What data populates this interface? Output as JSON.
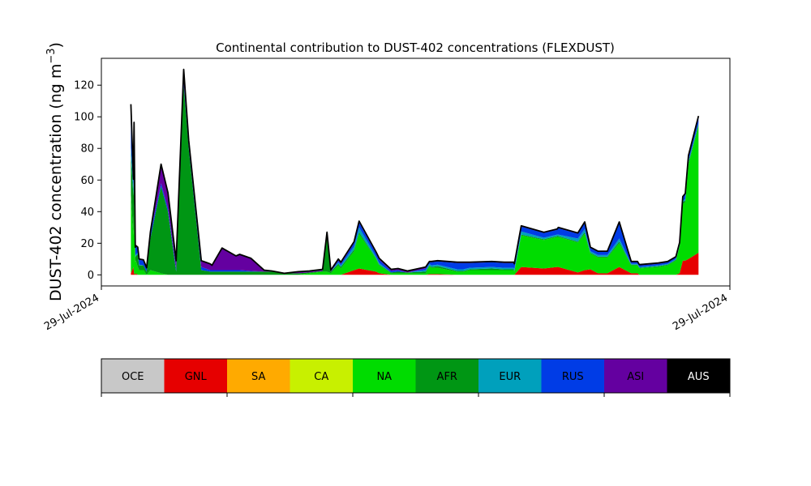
{
  "chart_data": [
    {
      "type": "area",
      "stacked": true,
      "title": "Continental contribution to DUST-402 concentrations (FLEXDUST)",
      "ylabel": "DUST-402 concentration (ng m",
      "ylabel_superscript": "−3",
      "ylabel_close": ")",
      "xlim": [
        0,
        100
      ],
      "ylim": [
        -7,
        137
      ],
      "x_ticks": [
        {
          "value": 0,
          "label": "29-Jul-2024"
        },
        {
          "value": 100,
          "label": "29-Jul-2024"
        }
      ],
      "y_ticks": [
        0,
        20,
        40,
        60,
        80,
        100,
        120
      ],
      "grid": false,
      "x": [
        4.7,
        5.1,
        5.2,
        5.4,
        5.5,
        5.8,
        6.0,
        6.7,
        7.2,
        7.8,
        9.5,
        10.6,
        11.9,
        13.1,
        13.9,
        15.9,
        17.3,
        17.6,
        19.2,
        21.4,
        22.0,
        23.8,
        25.9,
        27.1,
        29.1,
        31.3,
        33.1,
        35.2,
        35.9,
        36.5,
        37.7,
        38.1,
        40.2,
        41.0,
        43.7,
        44.2,
        46.1,
        47.2,
        48.7,
        51.6,
        52.2,
        52.5,
        53.5,
        56.6,
        57.6,
        58.6,
        62.1,
        64.1,
        65.6,
        65.7,
        66.8,
        70.4,
        72.5,
        72.7,
        75.8,
        76.9,
        77.8,
        79.0,
        79.3,
        80.5,
        82.4,
        84.3,
        84.9,
        85.3,
        85.6,
        88.6,
        90.1,
        91.4,
        92.0,
        92.5,
        92.9,
        93.4,
        95.0
      ],
      "series": [
        {
          "name": "OCE",
          "color": "#c8c8c8",
          "values": [
            0,
            0,
            0,
            0,
            0,
            0,
            0,
            0,
            0,
            0,
            0,
            0,
            0,
            0,
            0,
            0,
            0,
            0,
            0,
            0,
            0,
            0,
            0,
            0,
            0,
            0,
            0,
            0,
            0,
            0,
            0,
            0,
            0,
            0,
            0,
            0,
            0,
            0,
            0,
            0,
            0,
            0,
            0,
            0,
            0,
            0,
            0,
            0,
            0,
            0,
            0,
            0,
            0,
            0,
            0,
            0,
            0,
            0,
            0,
            0,
            0,
            0,
            0,
            0,
            0,
            0,
            0,
            0,
            0,
            0,
            0,
            0,
            0
          ]
        },
        {
          "name": "GNL",
          "color": "#e60000",
          "values": [
            1,
            5,
            1,
            0,
            1,
            0,
            0,
            0,
            0,
            0,
            0,
            0,
            0,
            0,
            0,
            0,
            0,
            0,
            0,
            0,
            0,
            0,
            0,
            0,
            0,
            0,
            0,
            0,
            0,
            0,
            0,
            0,
            3,
            4,
            2,
            1,
            0,
            0,
            0,
            0,
            0.5,
            0.5,
            0.5,
            0,
            0,
            0,
            0,
            0,
            0,
            0,
            5,
            4,
            5,
            5,
            1.5,
            3,
            3.5,
            1,
            1,
            1,
            5,
            1,
            1,
            1,
            0,
            0,
            0,
            0,
            1,
            9,
            9,
            10,
            14
          ]
        },
        {
          "name": "SA",
          "color": "#ffaa00",
          "values": [
            0,
            0,
            0,
            0,
            0,
            0,
            0,
            0,
            0,
            0,
            0,
            0,
            0,
            0,
            0,
            0,
            0,
            0,
            0,
            0,
            0,
            0,
            0,
            0,
            0,
            0,
            0,
            0,
            0,
            0,
            0,
            0,
            0,
            0,
            0,
            0,
            0,
            0,
            0,
            0,
            0,
            0,
            0,
            0,
            0,
            0,
            0,
            0,
            0,
            0,
            0,
            0,
            0,
            0,
            0,
            0,
            0,
            0,
            0,
            0,
            0,
            0,
            0,
            0,
            0,
            0,
            0,
            0,
            0,
            0,
            0,
            0,
            0
          ]
        },
        {
          "name": "CA",
          "color": "#c8f000",
          "values": [
            0,
            0,
            0,
            0,
            0,
            0,
            0,
            0,
            0,
            0,
            0,
            0,
            0,
            0,
            0,
            0,
            0,
            0,
            0,
            0,
            0,
            0,
            0,
            0,
            0,
            0,
            0,
            0,
            0,
            0,
            0,
            0,
            0,
            0,
            0,
            0,
            0,
            0,
            0,
            0,
            0,
            0,
            0,
            0,
            0,
            0,
            0,
            0,
            0,
            0,
            0,
            0,
            0,
            0,
            0,
            0,
            0,
            0,
            0,
            0,
            0,
            0,
            0,
            0,
            0,
            0,
            0,
            0,
            0,
            0,
            0,
            0,
            0
          ]
        },
        {
          "name": "NA",
          "color": "#00dc00",
          "values": [
            50,
            20,
            45,
            8,
            8,
            5,
            3,
            3,
            0,
            3,
            1,
            0,
            0,
            0,
            0,
            0,
            0,
            0,
            0,
            0,
            0,
            0,
            0,
            0,
            0,
            0,
            1,
            2,
            2,
            1,
            6,
            4,
            12,
            22,
            8,
            5,
            1,
            1,
            1,
            1,
            5,
            4,
            4,
            2,
            2,
            3,
            3,
            3,
            3,
            2,
            20,
            18,
            19,
            19,
            19,
            23,
            10,
            10,
            10,
            10,
            15,
            5,
            5,
            5,
            4,
            5,
            6,
            9,
            17,
            36,
            37,
            60,
            80
          ]
        },
        {
          "name": "AFR",
          "color": "#009614",
          "values": [
            25,
            25,
            30,
            3,
            3,
            8,
            3,
            3,
            2,
            20,
            55,
            40,
            2,
            120,
            80,
            3,
            2,
            2,
            2,
            2,
            2,
            2,
            2,
            2,
            1,
            1,
            0.5,
            0.5,
            24,
            1,
            1,
            1,
            1,
            1,
            0.5,
            0.5,
            0.5,
            1,
            0.5,
            1,
            0.5,
            0.5,
            1,
            0.5,
            0.5,
            0.5,
            1,
            0.5,
            0.5,
            0.5,
            0.5,
            0.5,
            0.5,
            0.5,
            0.5,
            1,
            0.5,
            0.5,
            0.5,
            0.5,
            1,
            0.5,
            0.5,
            0.5,
            0.5,
            0.5,
            0.5,
            0.5,
            0.5,
            1,
            1,
            1,
            1
          ]
        },
        {
          "name": "EUR",
          "color": "#00a0bc",
          "values": [
            5,
            5,
            5,
            1,
            1,
            1,
            0.5,
            0,
            0,
            0,
            0,
            0,
            0,
            0,
            0,
            0,
            0,
            0,
            0,
            0,
            0,
            0,
            0,
            0,
            0,
            0,
            0,
            0,
            0,
            0,
            1,
            1,
            2,
            3,
            1,
            1,
            0,
            0,
            0,
            1,
            1,
            1,
            1,
            1,
            1,
            1,
            1,
            1,
            1,
            1,
            2,
            1,
            1,
            1,
            2,
            2,
            1,
            1,
            1,
            1,
            2,
            0.5,
            0.5,
            0.5,
            0.5,
            0.5,
            0.5,
            0.5,
            0.5,
            1,
            1,
            1,
            1
          ]
        },
        {
          "name": "RUS",
          "color": "#003ce6",
          "values": [
            26,
            5,
            15,
            5,
            5,
            3,
            3,
            3,
            2,
            3,
            2,
            2,
            2,
            2,
            2,
            2,
            1,
            1,
            1,
            1,
            1,
            0.5,
            0,
            0,
            0,
            0,
            0,
            0,
            0,
            0,
            1,
            1,
            2,
            3,
            2,
            2,
            1,
            1,
            0,
            1,
            1,
            2,
            2,
            4,
            4,
            3,
            3,
            3,
            3,
            3,
            3,
            3,
            3,
            4,
            3,
            4,
            2,
            2,
            2,
            2,
            10,
            1,
            1,
            1,
            1,
            1,
            1,
            1,
            1,
            2,
            3,
            3,
            4
          ]
        },
        {
          "name": "ASI",
          "color": "#6400a0",
          "values": [
            1,
            0.5,
            0.5,
            0.5,
            0.5,
            0.5,
            0.5,
            0.5,
            0.5,
            1,
            12,
            10,
            5,
            8,
            3,
            4,
            4,
            3,
            14,
            9,
            10,
            8,
            1,
            0.5,
            0,
            1,
            1,
            1,
            1,
            1,
            1,
            1,
            1,
            1,
            1,
            1,
            1,
            1,
            1,
            1,
            0.5,
            0.5,
            0.5,
            0.5,
            0.5,
            0.5,
            0.5,
            0.5,
            0.5,
            0.5,
            0.5,
            0.5,
            0.5,
            0.5,
            0.5,
            0.5,
            0.5,
            0.5,
            0.5,
            0.5,
            0.5,
            0.5,
            0.5,
            0.5,
            0.5,
            0.5,
            0.5,
            0.5,
            0.5,
            0.5,
            0.5,
            0.5,
            0.5
          ]
        },
        {
          "name": "AUS",
          "color": "#000000",
          "values": [
            0,
            0,
            0,
            0,
            0,
            0,
            0,
            0,
            0,
            0,
            0,
            0,
            0,
            0,
            0,
            0,
            0,
            0,
            0,
            0,
            0,
            0,
            0,
            0,
            0,
            0,
            0,
            0,
            0,
            0,
            0,
            0,
            0,
            0,
            0,
            0,
            0,
            0,
            0,
            0,
            0,
            0,
            0,
            0,
            0,
            0,
            0,
            0,
            0,
            0,
            0,
            0,
            0,
            0,
            0,
            0,
            0,
            0,
            0,
            0,
            0,
            0,
            0,
            0,
            0,
            0,
            0,
            0,
            0,
            0,
            0,
            0,
            0
          ]
        }
      ],
      "total_line_color": "#000000"
    },
    {
      "type": "legend",
      "entries": [
        {
          "label": "OCE",
          "color": "#c8c8c8"
        },
        {
          "label": "GNL",
          "color": "#e60000"
        },
        {
          "label": "SA",
          "color": "#ffaa00"
        },
        {
          "label": "CA",
          "color": "#c8f000"
        },
        {
          "label": "NA",
          "color": "#00dc00"
        },
        {
          "label": "AFR",
          "color": "#009614"
        },
        {
          "label": "EUR",
          "color": "#00a0bc"
        },
        {
          "label": "RUS",
          "color": "#003ce6"
        },
        {
          "label": "ASI",
          "color": "#6400a0"
        },
        {
          "label": "AUS",
          "color": "#000000"
        }
      ],
      "tick_positions": [
        0,
        2,
        4,
        6,
        8,
        10
      ]
    }
  ]
}
